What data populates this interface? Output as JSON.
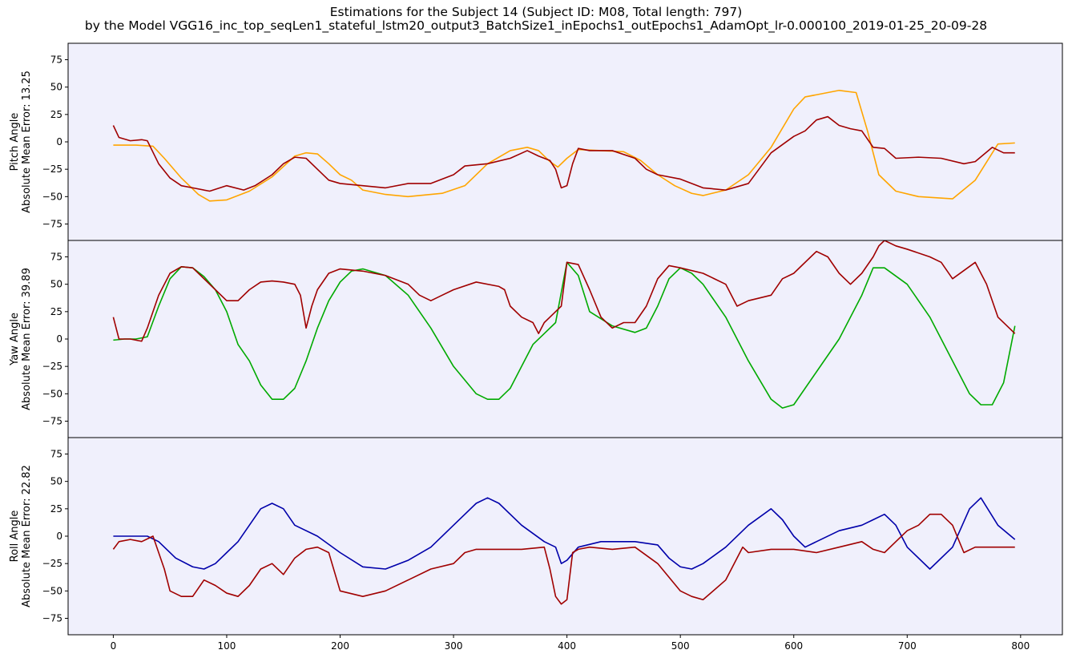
{
  "title_line1": "Estimations for the Subject 14 (Subject ID: M08, Total length: 797)",
  "title_line2": "by the Model VGG16_inc_top_seqLen1_stateful_lstm20_output3_BatchSize1_inEpochs1_outEpochs1_AdamOpt_lr-0.000100_2019-01-25_20-09-28",
  "colors": {
    "panel_bg": "#f0f0fc",
    "estimate": "#a00000",
    "pitch_truth": "#ffa500",
    "yaw_truth": "#00aa00",
    "roll_truth": "#0000aa"
  },
  "chart_data": [
    {
      "type": "line",
      "ylabel_line1": "Pitch Angle",
      "ylabel_line2": "Absolute Mean Error: 13.25",
      "xlim": [
        -39.85,
        836.85
      ],
      "ylim": [
        -90,
        90
      ],
      "yticks": [
        -75,
        -50,
        -25,
        0,
        25,
        50,
        75
      ],
      "xticks": [],
      "series": [
        {
          "role": "truth",
          "color": "#ffa500",
          "x": [
            0,
            20,
            35,
            45,
            60,
            75,
            85,
            100,
            120,
            140,
            160,
            170,
            180,
            190,
            200,
            210,
            220,
            240,
            260,
            290,
            310,
            330,
            350,
            365,
            375,
            385,
            392,
            400,
            410,
            430,
            450,
            465,
            480,
            495,
            510,
            520,
            540,
            560,
            580,
            600,
            610,
            620,
            640,
            655,
            665,
            675,
            690,
            710,
            740,
            760,
            780,
            795
          ],
          "y": [
            -3,
            -3,
            -4,
            -15,
            -33,
            -48,
            -54,
            -53,
            -45,
            -32,
            -13,
            -10,
            -11,
            -20,
            -30,
            -35,
            -44,
            -48,
            -50,
            -47,
            -40,
            -20,
            -8,
            -5,
            -8,
            -18,
            -23,
            -15,
            -7,
            -8,
            -9,
            -17,
            -30,
            -40,
            -47,
            -49,
            -44,
            -30,
            -5,
            30,
            41,
            43,
            47,
            45,
            10,
            -30,
            -45,
            -50,
            -52,
            -35,
            -2,
            -1
          ]
        },
        {
          "role": "estimate",
          "color": "#a00000",
          "x": [
            0,
            5,
            15,
            25,
            30,
            40,
            50,
            60,
            70,
            85,
            100,
            115,
            125,
            140,
            150,
            160,
            170,
            180,
            190,
            200,
            220,
            240,
            260,
            280,
            300,
            310,
            330,
            350,
            365,
            375,
            385,
            390,
            395,
            400,
            405,
            410,
            420,
            440,
            460,
            470,
            480,
            500,
            520,
            540,
            560,
            580,
            600,
            610,
            620,
            630,
            640,
            650,
            660,
            670,
            680,
            690,
            710,
            730,
            750,
            760,
            775,
            785,
            795
          ],
          "y": [
            15,
            4,
            1,
            2,
            1,
            -20,
            -33,
            -40,
            -42,
            -45,
            -40,
            -44,
            -40,
            -30,
            -20,
            -14,
            -15,
            -25,
            -35,
            -38,
            -40,
            -42,
            -38,
            -38,
            -30,
            -22,
            -20,
            -15,
            -8,
            -13,
            -17,
            -25,
            -42,
            -40,
            -20,
            -6,
            -8,
            -8,
            -15,
            -25,
            -30,
            -34,
            -42,
            -44,
            -38,
            -10,
            5,
            10,
            20,
            23,
            15,
            12,
            10,
            -5,
            -6,
            -15,
            -14,
            -15,
            -20,
            -18,
            -5,
            -10,
            -10
          ]
        }
      ]
    },
    {
      "type": "line",
      "ylabel_line1": "Yaw Angle",
      "ylabel_line2": "Absolute Mean Error: 39.89",
      "xlim": [
        -39.85,
        836.85
      ],
      "ylim": [
        -90,
        90
      ],
      "yticks": [
        -75,
        -50,
        -25,
        0,
        25,
        50,
        75
      ],
      "xticks": [],
      "series": [
        {
          "role": "truth",
          "color": "#00aa00",
          "x": [
            0,
            10,
            20,
            30,
            40,
            50,
            60,
            70,
            80,
            90,
            100,
            110,
            120,
            130,
            140,
            150,
            160,
            170,
            180,
            190,
            200,
            210,
            220,
            240,
            260,
            280,
            300,
            320,
            330,
            340,
            350,
            360,
            370,
            380,
            390,
            400,
            410,
            420,
            440,
            460,
            470,
            480,
            490,
            500,
            510,
            520,
            540,
            560,
            580,
            590,
            600,
            620,
            640,
            660,
            670,
            680,
            700,
            720,
            740,
            755,
            765,
            775,
            785,
            795
          ],
          "y": [
            -1,
            0,
            0,
            2,
            30,
            55,
            66,
            65,
            57,
            45,
            25,
            -5,
            -20,
            -42,
            -55,
            -55,
            -45,
            -20,
            10,
            35,
            52,
            62,
            64,
            58,
            40,
            10,
            -25,
            -50,
            -55,
            -55,
            -45,
            -25,
            -5,
            5,
            15,
            70,
            58,
            25,
            12,
            6,
            10,
            30,
            55,
            65,
            60,
            50,
            20,
            -20,
            -55,
            -63,
            -60,
            -30,
            0,
            40,
            65,
            65,
            50,
            20,
            -20,
            -50,
            -60,
            -60,
            -40,
            12
          ]
        },
        {
          "role": "estimate",
          "color": "#a00000",
          "x": [
            0,
            5,
            15,
            25,
            30,
            40,
            50,
            60,
            70,
            80,
            90,
            100,
            110,
            120,
            130,
            140,
            150,
            160,
            165,
            170,
            175,
            180,
            190,
            200,
            220,
            240,
            260,
            270,
            280,
            290,
            300,
            320,
            340,
            345,
            350,
            360,
            370,
            375,
            380,
            385,
            390,
            395,
            400,
            410,
            420,
            430,
            440,
            450,
            460,
            470,
            480,
            490,
            500,
            520,
            540,
            550,
            560,
            580,
            590,
            600,
            620,
            630,
            640,
            650,
            660,
            670,
            675,
            680,
            690,
            700,
            720,
            730,
            740,
            760,
            770,
            780,
            790,
            795
          ],
          "y": [
            20,
            0,
            0,
            -2,
            10,
            40,
            60,
            66,
            65,
            55,
            45,
            35,
            35,
            45,
            52,
            53,
            52,
            50,
            40,
            10,
            30,
            45,
            60,
            64,
            62,
            58,
            50,
            40,
            35,
            40,
            45,
            52,
            48,
            45,
            30,
            20,
            15,
            5,
            15,
            20,
            25,
            30,
            70,
            68,
            45,
            20,
            10,
            15,
            15,
            30,
            55,
            67,
            65,
            60,
            50,
            30,
            35,
            40,
            55,
            60,
            80,
            75,
            60,
            50,
            60,
            75,
            85,
            90,
            85,
            82,
            75,
            70,
            55,
            70,
            50,
            20,
            10,
            5
          ]
        }
      ]
    },
    {
      "type": "line",
      "ylabel_line1": "Roll Angle",
      "ylabel_line2": "Absolute Mean Error: 22.82",
      "xlim": [
        -39.85,
        836.85
      ],
      "ylim": [
        -90,
        90
      ],
      "yticks": [
        -75,
        -50,
        -25,
        0,
        25,
        50,
        75
      ],
      "xticks": [
        0,
        100,
        200,
        300,
        400,
        500,
        600,
        700,
        800
      ],
      "series": [
        {
          "role": "truth",
          "color": "#0000aa",
          "x": [
            0,
            30,
            40,
            55,
            70,
            80,
            90,
            100,
            110,
            120,
            130,
            140,
            150,
            160,
            180,
            200,
            220,
            240,
            260,
            280,
            300,
            320,
            330,
            340,
            360,
            380,
            390,
            395,
            400,
            410,
            430,
            460,
            480,
            490,
            500,
            510,
            520,
            540,
            560,
            580,
            590,
            600,
            610,
            620,
            640,
            660,
            670,
            680,
            690,
            700,
            720,
            740,
            755,
            765,
            780,
            795
          ],
          "y": [
            0,
            0,
            -5,
            -20,
            -28,
            -30,
            -25,
            -15,
            -5,
            10,
            25,
            30,
            25,
            10,
            0,
            -15,
            -28,
            -30,
            -22,
            -10,
            10,
            30,
            35,
            30,
            10,
            -5,
            -10,
            -25,
            -22,
            -10,
            -5,
            -5,
            -8,
            -20,
            -28,
            -30,
            -25,
            -10,
            10,
            25,
            15,
            0,
            -10,
            -5,
            5,
            10,
            15,
            20,
            10,
            -10,
            -30,
            -10,
            25,
            35,
            10,
            -3
          ]
        },
        {
          "role": "estimate",
          "color": "#a00000",
          "x": [
            0,
            5,
            15,
            25,
            35,
            45,
            50,
            60,
            70,
            80,
            90,
            100,
            110,
            120,
            130,
            140,
            150,
            160,
            170,
            180,
            190,
            200,
            220,
            240,
            260,
            280,
            300,
            310,
            320,
            330,
            340,
            360,
            380,
            385,
            390,
            395,
            400,
            405,
            410,
            420,
            440,
            460,
            480,
            500,
            510,
            520,
            540,
            555,
            560,
            580,
            600,
            620,
            640,
            660,
            670,
            680,
            690,
            700,
            710,
            720,
            730,
            740,
            750,
            760,
            770,
            780,
            795
          ],
          "y": [
            -12,
            -5,
            -3,
            -5,
            0,
            -30,
            -50,
            -55,
            -55,
            -40,
            -45,
            -52,
            -55,
            -45,
            -30,
            -25,
            -35,
            -20,
            -12,
            -10,
            -15,
            -50,
            -55,
            -50,
            -40,
            -30,
            -25,
            -15,
            -12,
            -12,
            -12,
            -12,
            -10,
            -30,
            -55,
            -62,
            -58,
            -15,
            -12,
            -10,
            -12,
            -10,
            -25,
            -50,
            -55,
            -58,
            -40,
            -10,
            -15,
            -12,
            -12,
            -15,
            -10,
            -5,
            -12,
            -15,
            -5,
            5,
            10,
            20,
            20,
            10,
            -15,
            -10,
            -10,
            -10,
            -10
          ]
        }
      ]
    }
  ]
}
